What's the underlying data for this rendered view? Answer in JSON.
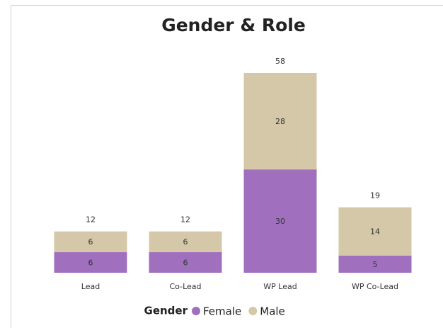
{
  "chart_data": {
    "type": "stacked_bar",
    "title": "Gender & Role",
    "categories": [
      "Lead",
      "Co-Lead",
      "WP Lead",
      "WP Co-Lead"
    ],
    "series": [
      {
        "name": "Female",
        "color": "#a070bf",
        "values": [
          6,
          6,
          30,
          5
        ]
      },
      {
        "name": "Male",
        "color": "#d4c8a8",
        "values": [
          6,
          6,
          28,
          14
        ]
      }
    ],
    "totals": [
      12,
      12,
      58,
      19
    ],
    "legend_title": "Gender",
    "legend": "bottom"
  }
}
